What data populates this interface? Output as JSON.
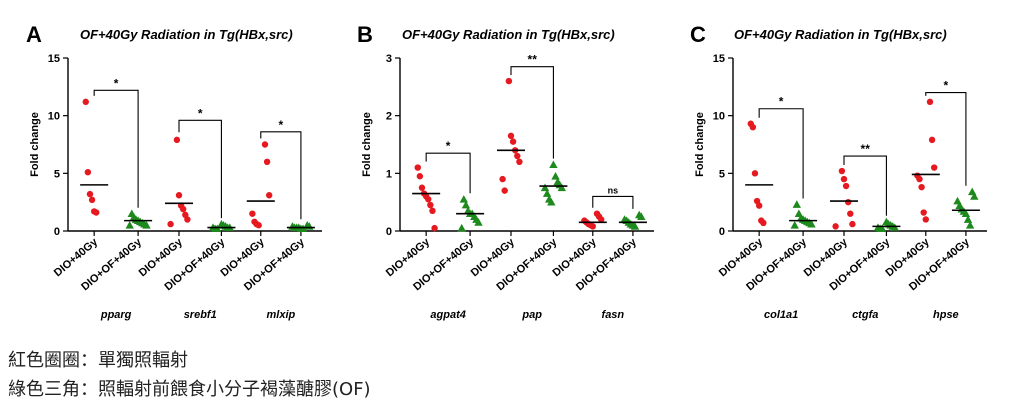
{
  "colors": {
    "red": "#e5191f",
    "green": "#1e8a1e",
    "axis": "#000000"
  },
  "chart_data": [
    {
      "type": "scatter",
      "panel_label": "A",
      "title": "OF+40Gy Radiation in Tg(HBx,src)",
      "ylabel": "Fold change",
      "ylim": [
        0,
        15
      ],
      "yticks": [
        0,
        5,
        10,
        15
      ],
      "xtick_labels": [
        "DIO+40Gy",
        "DIO+OF+40Gy",
        "DIO+40Gy",
        "DIO+OF+40Gy",
        "DIO+40Gy",
        "DIO+OF+40Gy"
      ],
      "series": [
        {
          "name": "DIO+40Gy",
          "color": "red",
          "marker": "circle",
          "groups": [
            {
              "values": [
                11.2,
                5.1,
                3.2,
                2.7,
                1.7,
                1.6
              ],
              "mean": 4.0
            },
            {
              "values": [
                7.9,
                3.1,
                2.2,
                1.9,
                1.4,
                1.0,
                0.6
              ],
              "mean": 2.4
            },
            {
              "values": [
                7.5,
                6.0,
                3.1,
                1.5,
                0.8,
                0.6,
                0.5
              ],
              "mean": 2.6
            }
          ]
        },
        {
          "name": "DIO+OF+40Gy",
          "color": "green",
          "marker": "triangle",
          "groups": [
            {
              "values": [
                1.5,
                1.2,
                1.0,
                0.9,
                0.8,
                0.7,
                0.6,
                0.5,
                0.5
              ],
              "mean": 0.9
            },
            {
              "values": [
                0.6,
                0.5,
                0.4,
                0.3,
                0.3,
                0.3,
                0.2,
                0.2
              ],
              "mean": 0.3
            },
            {
              "values": [
                0.5,
                0.4,
                0.4,
                0.3,
                0.3,
                0.3,
                0.2,
                0.2
              ],
              "mean": 0.3
            }
          ]
        }
      ],
      "genes": [
        "pparg",
        "srebf1",
        "mlxip"
      ],
      "significance": [
        {
          "group": 0,
          "label": "*",
          "y": 12.2
        },
        {
          "group": 1,
          "label": "*",
          "y": 9.6
        },
        {
          "group": 2,
          "label": "*",
          "y": 8.6
        }
      ]
    },
    {
      "type": "scatter",
      "panel_label": "B",
      "title": "OF+40Gy Radiation in Tg(HBx,src)",
      "ylabel": "Fold change",
      "ylim": [
        0,
        3
      ],
      "yticks": [
        0,
        1,
        2,
        3
      ],
      "xtick_labels": [
        "DIO+40Gy",
        "DIO+OF+40Gy",
        "DIO+40Gy",
        "DIO+OF+40Gy",
        "DIO+40Gy",
        "DIO+OF+40Gy"
      ],
      "series": [
        {
          "name": "DIO+40Gy",
          "color": "red",
          "marker": "circle",
          "groups": [
            {
              "values": [
                1.1,
                0.95,
                0.75,
                0.65,
                0.6,
                0.55,
                0.45,
                0.35,
                0.05
              ],
              "mean": 0.65
            },
            {
              "values": [
                2.6,
                1.65,
                1.55,
                1.4,
                1.3,
                1.2,
                0.9,
                0.7
              ],
              "mean": 1.4
            },
            {
              "values": [
                0.3,
                0.25,
                0.2,
                0.18,
                0.15,
                0.12,
                0.1,
                0.08
              ],
              "mean": 0.15
            }
          ]
        },
        {
          "name": "DIO+OF+40Gy",
          "color": "green",
          "marker": "triangle",
          "groups": [
            {
              "values": [
                0.55,
                0.45,
                0.35,
                0.3,
                0.3,
                0.25,
                0.2,
                0.15,
                0.05
              ],
              "mean": 0.3
            },
            {
              "values": [
                1.15,
                0.95,
                0.85,
                0.8,
                0.75,
                0.75,
                0.65,
                0.55,
                0.5
              ],
              "mean": 0.78
            },
            {
              "values": [
                0.28,
                0.25,
                0.2,
                0.18,
                0.15,
                0.12,
                0.1,
                0.08
              ],
              "mean": 0.15
            }
          ]
        }
      ],
      "genes": [
        "agpat4",
        "pap",
        "fasn"
      ],
      "significance": [
        {
          "group": 0,
          "label": "*",
          "y": 1.35
        },
        {
          "group": 1,
          "label": "**",
          "y": 2.85
        },
        {
          "group": 2,
          "label": "ns",
          "y": 0.6
        }
      ]
    },
    {
      "type": "scatter",
      "panel_label": "C",
      "title": "OF+40Gy Radiation in Tg(HBx,src)",
      "ylabel": "Fold change",
      "ylim": [
        0,
        15
      ],
      "yticks": [
        0,
        5,
        10,
        15
      ],
      "xtick_labels": [
        "DIO+40Gy",
        "DIO+OF+40Gy",
        "DIO+40Gy",
        "DIO+OF+40Gy",
        "DIO+40Gy",
        "DIO+OF+40Gy"
      ],
      "series": [
        {
          "name": "DIO+40Gy",
          "color": "red",
          "marker": "circle",
          "groups": [
            {
              "values": [
                9.3,
                9.0,
                5.0,
                2.6,
                2.2,
                0.9,
                0.7
              ],
              "mean": 4.0
            },
            {
              "values": [
                5.2,
                4.5,
                3.9,
                2.5,
                1.5,
                0.6,
                0.4
              ],
              "mean": 2.6
            },
            {
              "values": [
                11.2,
                7.9,
                5.5,
                4.8,
                4.5,
                3.8,
                1.6,
                1.0
              ],
              "mean": 4.9
            }
          ]
        },
        {
          "name": "DIO+OF+40Gy",
          "color": "green",
          "marker": "triangle",
          "groups": [
            {
              "values": [
                2.3,
                1.5,
                1.1,
                1.0,
                0.9,
                0.8,
                0.7,
                0.6,
                0.5
              ],
              "mean": 0.9
            },
            {
              "values": [
                0.8,
                0.6,
                0.5,
                0.4,
                0.3,
                0.3,
                0.2,
                0.2
              ],
              "mean": 0.4
            },
            {
              "values": [
                3.4,
                3.0,
                2.6,
                2.2,
                1.9,
                1.7,
                1.5,
                1.0,
                0.5
              ],
              "mean": 1.8
            }
          ]
        }
      ],
      "genes": [
        "col1a1",
        "ctgfa",
        "hpse"
      ],
      "significance": [
        {
          "group": 0,
          "label": "*",
          "y": 10.6
        },
        {
          "group": 1,
          "label": "**",
          "y": 6.5
        },
        {
          "group": 2,
          "label": "*",
          "y": 12.0
        }
      ]
    }
  ],
  "captions": {
    "line1": "紅色圈圈：單獨照輻射",
    "line2": "綠色三角：照輻射前餵食小分子褐藻醣膠(OF)"
  }
}
